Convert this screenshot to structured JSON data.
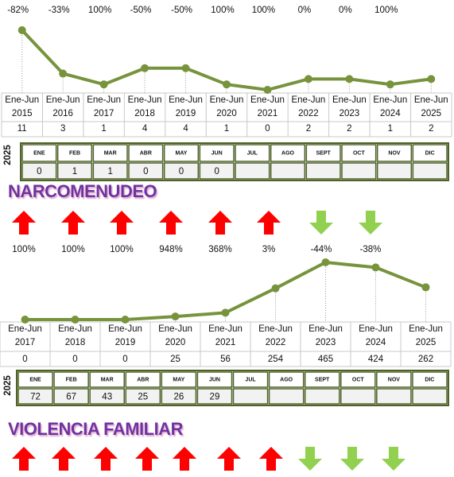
{
  "sections": [
    {
      "changes": [
        "-82%",
        "-33%",
        "100%",
        "-50%",
        "-50%",
        "100%",
        "100%",
        "0%",
        "0%",
        "100%"
      ],
      "chart": {
        "type": "line",
        "color": "#77933c",
        "categories": [
          [
            "Ene-Jun",
            "2015"
          ],
          [
            "Ene-Jun",
            "2016"
          ],
          [
            "Ene-Jun",
            "2017"
          ],
          [
            "Ene-Jun",
            "2018"
          ],
          [
            "Ene-Jun",
            "2019"
          ],
          [
            "Ene-Jun",
            "2020"
          ],
          [
            "Ene-Jun",
            "2021"
          ],
          [
            "Ene-Jun",
            "2022"
          ],
          [
            "Ene-Jun",
            "2023"
          ],
          [
            "Ene-Jun",
            "2024"
          ],
          [
            "Ene-Jun",
            "2025"
          ]
        ],
        "values": [
          11,
          3,
          1,
          4,
          4,
          1,
          0,
          2,
          2,
          1,
          2
        ]
      },
      "monthly": {
        "year": "2025",
        "months": [
          "ENE",
          "FEB",
          "MAR",
          "ABR",
          "MAY",
          "JUN",
          "JUL",
          "AGO",
          "SEPT",
          "OCT",
          "NOV",
          "DIC"
        ],
        "values": [
          0,
          1,
          1,
          0,
          0,
          0,
          null,
          null,
          null,
          null,
          null,
          null
        ]
      }
    },
    {
      "title": "NARCOMENUDEO",
      "changes": [
        "100%",
        "100%",
        "100%",
        "948%",
        "368%",
        "3%",
        "-44%",
        "-38%"
      ],
      "chart": {
        "type": "line",
        "color": "#77933c",
        "categories": [
          [
            "Ene-Jun",
            "2017"
          ],
          [
            "Ene-Jun",
            "2018"
          ],
          [
            "Ene-Jun",
            "2019"
          ],
          [
            "Ene-Jun",
            "2020"
          ],
          [
            "Ene-Jun",
            "2021"
          ],
          [
            "Ene-Jun",
            "2022"
          ],
          [
            "Ene-Jun",
            "2023"
          ],
          [
            "Ene-Jun",
            "2024"
          ],
          [
            "Ene-Jun",
            "2025"
          ]
        ],
        "values": [
          0,
          0,
          0,
          25,
          56,
          254,
          465,
          424,
          262
        ]
      },
      "monthly": {
        "year": "2025",
        "months": [
          "ENE",
          "FEB",
          "MAR",
          "ABR",
          "MAY",
          "JUN",
          "JUL",
          "AGO",
          "SEPT",
          "OCT",
          "NOV",
          "DIC"
        ],
        "values": [
          72,
          67,
          43,
          25,
          26,
          29,
          null,
          null,
          null,
          null,
          null,
          null
        ]
      }
    },
    {
      "title": "VIOLENCIA FAMILIAR"
    }
  ]
}
